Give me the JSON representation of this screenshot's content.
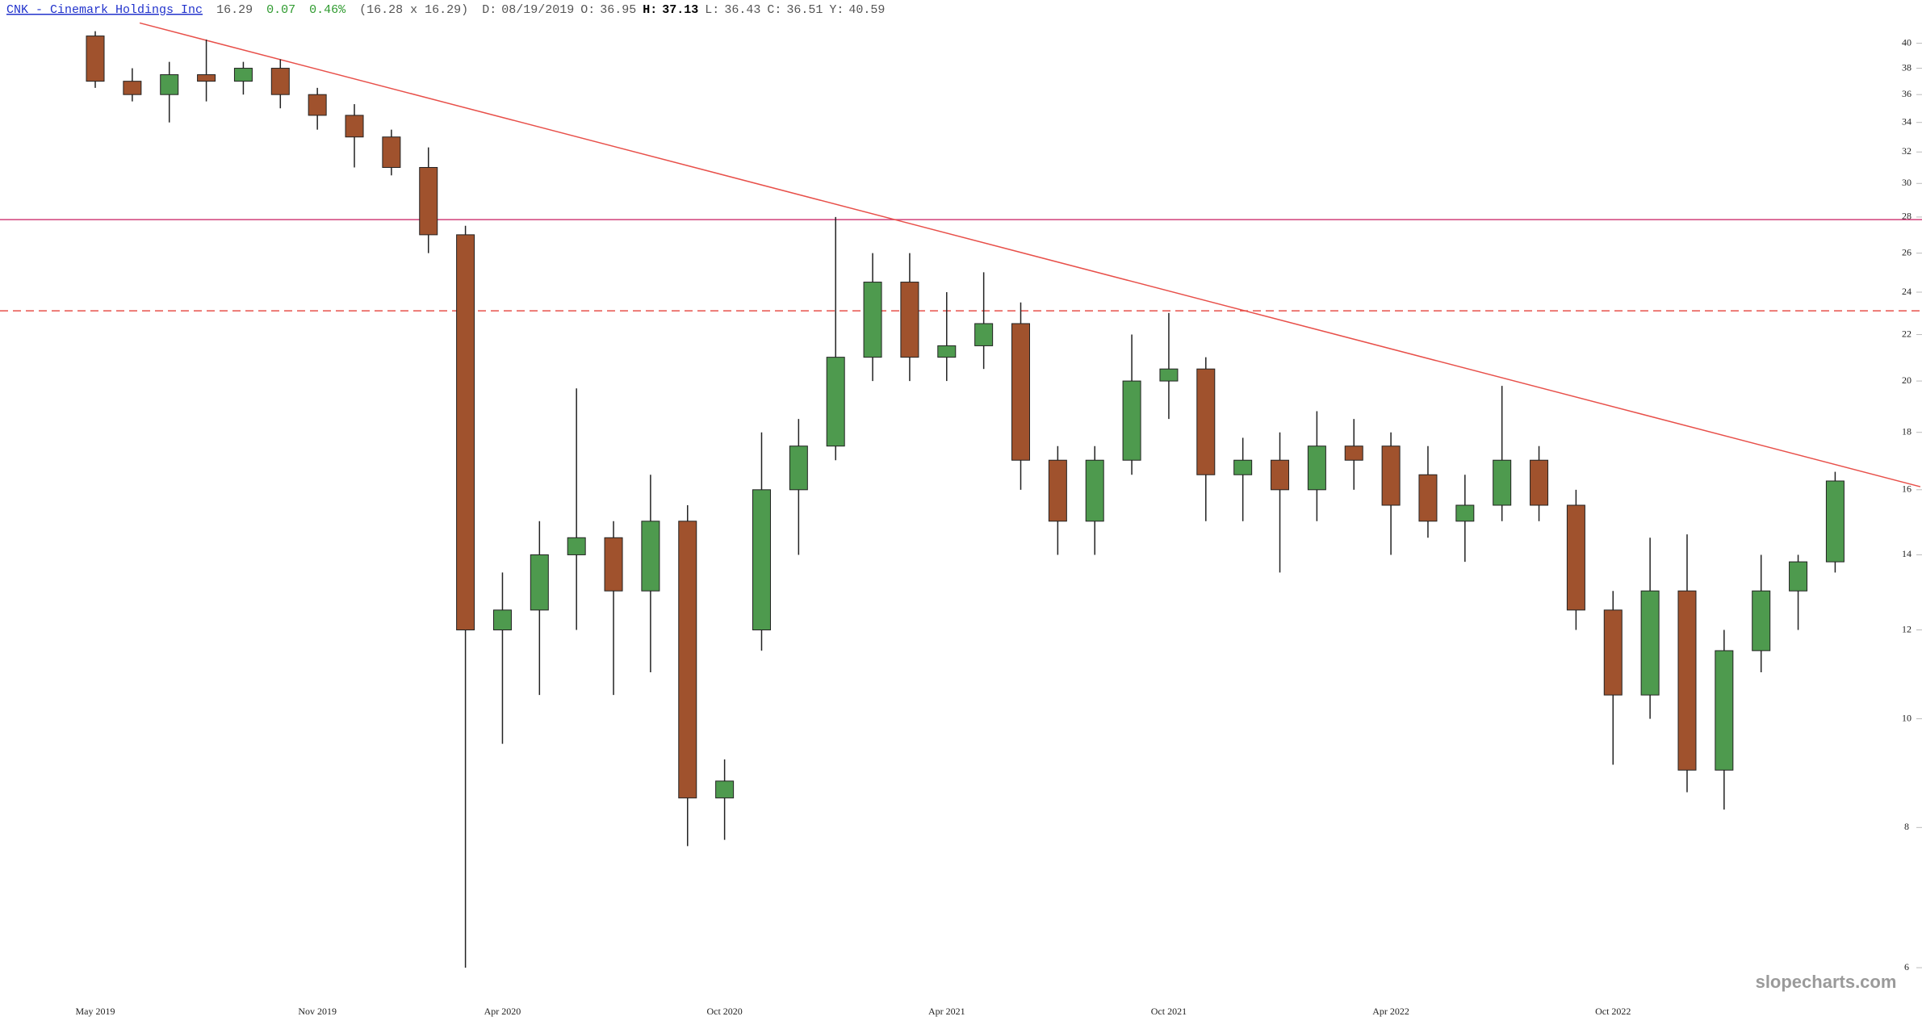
{
  "chart_data": {
    "type": "candlestick",
    "title": "CNK - Cinemark Holdings Inc",
    "last": "16.29",
    "change": "0.07",
    "change_pct": "0.46%",
    "bid_ask": "(16.28 x 16.29)",
    "info": [
      {
        "label": "D:",
        "value": "08/19/2019"
      },
      {
        "label": "O:",
        "value": "36.95"
      },
      {
        "label": "H:",
        "value": "37.13"
      },
      {
        "label": "L:",
        "value": "36.43"
      },
      {
        "label": "C:",
        "value": "36.51"
      },
      {
        "label": "Y:",
        "value": "40.59"
      }
    ],
    "watermark": "slopecharts.com",
    "categories": [
      "May 2019",
      null,
      null,
      null,
      null,
      null,
      "Nov 2019",
      null,
      null,
      null,
      null,
      "Apr 2020",
      null,
      null,
      null,
      null,
      null,
      "Oct 2020",
      null,
      null,
      null,
      null,
      null,
      "Apr 2021",
      null,
      null,
      null,
      null,
      null,
      "Oct 2021",
      null,
      null,
      null,
      null,
      null,
      "Apr 2022",
      null,
      null,
      null,
      null,
      null,
      "Oct 2022",
      null,
      null,
      null,
      null,
      null,
      null
    ],
    "open": [
      40.6,
      37,
      36,
      37.5,
      37,
      38,
      36,
      34.5,
      33,
      31,
      27,
      12,
      12.5,
      14,
      14.5,
      13,
      15,
      8.5,
      12,
      16,
      17.5,
      21,
      24.5,
      21,
      21.5,
      22.5,
      17,
      15,
      17,
      20,
      20.5,
      16.5,
      17,
      16,
      17.5,
      17.5,
      16.5,
      15,
      15.5,
      17,
      15.5,
      12.5,
      10.5,
      13,
      9,
      11.5,
      13,
      13.8
    ],
    "high": [
      41,
      38,
      38.5,
      40.3,
      38.5,
      38.7,
      36.5,
      35.3,
      33.5,
      32.3,
      27.5,
      13.5,
      15,
      19.7,
      15,
      16.5,
      15.5,
      9.2,
      18,
      18.5,
      28,
      26,
      26,
      24,
      25,
      23.5,
      17.5,
      17.5,
      22,
      23,
      21,
      17.8,
      18,
      18.8,
      18.5,
      18,
      17.5,
      16.5,
      19.8,
      17.5,
      16,
      13,
      14.5,
      14.6,
      12,
      14,
      14,
      16.6
    ],
    "low": [
      36.5,
      35.5,
      34,
      35.5,
      36,
      35,
      33.5,
      31,
      30.5,
      26,
      6,
      9.5,
      10.5,
      12,
      10.5,
      11,
      7.7,
      7.8,
      11.5,
      14,
      17,
      20,
      20,
      20,
      20.5,
      16,
      14,
      14,
      16.5,
      18.5,
      15,
      15,
      13.5,
      15,
      16,
      14,
      14.5,
      13.8,
      15,
      15,
      12,
      9.1,
      10,
      8.6,
      8.3,
      11,
      12,
      13.5
    ],
    "close": [
      37,
      36,
      37.5,
      37,
      38,
      36,
      34.5,
      33,
      31,
      27,
      12,
      12.5,
      14,
      14.5,
      13,
      15,
      8.5,
      8.8,
      16,
      17.5,
      21,
      24.5,
      21,
      21.5,
      22.5,
      17,
      15,
      17,
      20,
      20.5,
      16.5,
      17,
      16,
      17.5,
      17,
      15.5,
      15,
      15.5,
      17,
      15.5,
      12.5,
      10.5,
      13,
      9,
      11.5,
      13,
      13.8,
      16.29
    ],
    "up_color": "#4e9a4e",
    "down_color": "#a0522d",
    "ylim": [
      5.7,
      41.8
    ],
    "yticks": [
      6,
      8,
      10,
      12,
      14,
      16,
      18,
      20,
      22,
      24,
      26,
      28,
      30,
      32,
      34,
      36,
      38,
      40
    ],
    "log_scale": true,
    "grid": false,
    "hlines": [
      {
        "value": 27.85,
        "color": "#d0407a",
        "style": "solid"
      },
      {
        "value": 23.1,
        "color": "#e8504a",
        "style": "dashed"
      }
    ],
    "trendline": {
      "x": [
        1.2,
        49.3
      ],
      "y": [
        41.7,
        16.1
      ],
      "color": "#e8504a"
    }
  }
}
